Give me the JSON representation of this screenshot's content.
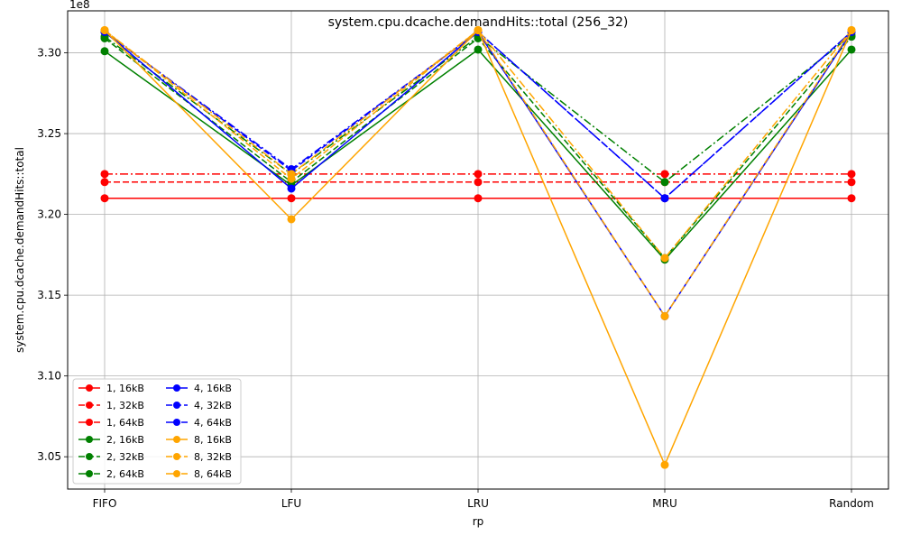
{
  "chart_data": {
    "type": "line",
    "title": "system.cpu.dcache.demandHits::total (256_32)",
    "xlabel": "rp",
    "ylabel": "system.cpu.dcache.demandHits::total",
    "scale_label": "1e8",
    "categories": [
      "FIFO",
      "LFU",
      "LRU",
      "MRU",
      "Random"
    ],
    "ylim": [
      3.03,
      3.326
    ],
    "yticks": [
      3.05,
      3.1,
      3.15,
      3.2,
      3.25,
      3.3
    ],
    "ytick_labels": [
      "3.05",
      "3.10",
      "3.15",
      "3.20",
      "3.25",
      "3.30"
    ],
    "grid": true,
    "legend_position": "lower-left",
    "legend_columns": 2,
    "series": [
      {
        "name": "1, 16kB",
        "color": "#ff0000",
        "dash": "solid",
        "values": [
          3.21,
          3.21,
          3.21,
          3.21,
          3.21
        ]
      },
      {
        "name": "1, 32kB",
        "color": "#ff0000",
        "dash": "dashed",
        "values": [
          3.22,
          3.22,
          3.22,
          3.22,
          3.22
        ]
      },
      {
        "name": "1, 64kB",
        "color": "#ff0000",
        "dash": "dashdot",
        "values": [
          3.225,
          3.225,
          3.225,
          3.225,
          3.225
        ]
      },
      {
        "name": "2, 16kB",
        "color": "#008000",
        "dash": "solid",
        "values": [
          3.301,
          3.218,
          3.302,
          3.172,
          3.302
        ]
      },
      {
        "name": "2, 32kB",
        "color": "#008000",
        "dash": "dashed",
        "values": [
          3.309,
          3.22,
          3.309,
          3.173,
          3.31
        ]
      },
      {
        "name": "2, 64kB",
        "color": "#008000",
        "dash": "dashdot",
        "values": [
          3.31,
          3.225,
          3.31,
          3.22,
          3.311
        ]
      },
      {
        "name": "4, 16kB",
        "color": "#0000ff",
        "dash": "solid",
        "values": [
          3.313,
          3.216,
          3.313,
          3.137,
          3.313
        ]
      },
      {
        "name": "4, 32kB",
        "color": "#0000ff",
        "dash": "dashed",
        "values": [
          3.313,
          3.227,
          3.313,
          3.21,
          3.313
        ]
      },
      {
        "name": "4, 64kB",
        "color": "#0000ff",
        "dash": "dashdot",
        "values": [
          3.313,
          3.228,
          3.313,
          3.21,
          3.313
        ]
      },
      {
        "name": "8, 16kB",
        "color": "#ffa500",
        "dash": "solid",
        "values": [
          3.314,
          3.197,
          3.314,
          3.045,
          3.314
        ]
      },
      {
        "name": "8, 32kB",
        "color": "#ffa500",
        "dash": "dashed",
        "values": [
          3.314,
          3.222,
          3.314,
          3.137,
          3.314
        ]
      },
      {
        "name": "8, 64kB",
        "color": "#ffa500",
        "dash": "dashdot",
        "values": [
          3.314,
          3.225,
          3.314,
          3.173,
          3.314
        ]
      }
    ]
  }
}
